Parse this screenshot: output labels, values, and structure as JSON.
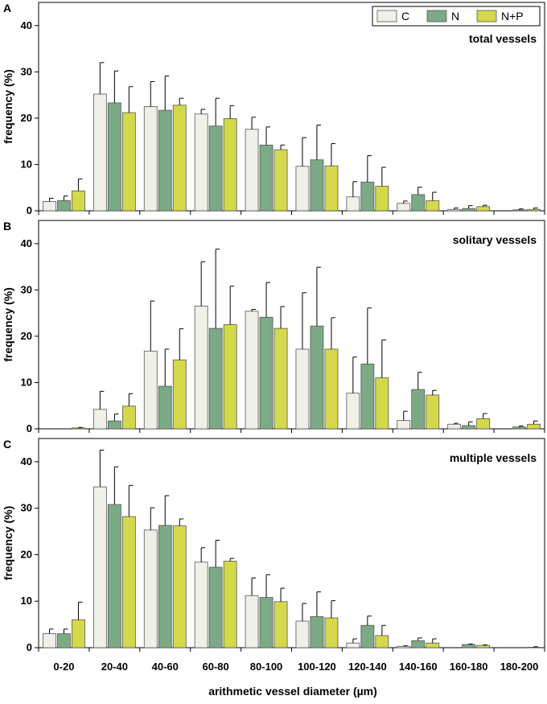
{
  "chart_data": [
    {
      "type": "bar",
      "panel_letter": "A",
      "title": "total vessels",
      "ylabel": "frequency (%)",
      "xlabel": "",
      "ylim": [
        0,
        45
      ],
      "yticks": [
        0,
        10,
        20,
        30,
        40
      ],
      "categories": [
        "0-20",
        "20-40",
        "40-60",
        "60-80",
        "80-100",
        "100-120",
        "120-140",
        "140-160",
        "160-180",
        "180-200"
      ],
      "series": [
        {
          "name": "C",
          "color": "#f0f0e8",
          "values": [
            2.0,
            25.2,
            22.5,
            20.9,
            17.6,
            9.6,
            3.0,
            1.6,
            0.3,
            0.0
          ],
          "errors": [
            0.7,
            6.8,
            5.4,
            1.0,
            2.6,
            6.2,
            3.3,
            0.5,
            0.3,
            0.0
          ]
        },
        {
          "name": "N",
          "color": "#7daa86",
          "values": [
            2.2,
            23.3,
            21.7,
            18.3,
            14.2,
            11.0,
            6.2,
            3.5,
            0.5,
            0.2
          ],
          "errors": [
            1.0,
            6.9,
            7.4,
            6.0,
            3.9,
            7.5,
            5.7,
            1.6,
            0.6,
            0.2
          ]
        },
        {
          "name": "N+P",
          "color": "#d3d94a",
          "values": [
            4.3,
            21.2,
            22.8,
            19.9,
            13.2,
            9.7,
            5.3,
            2.2,
            0.9,
            0.3
          ],
          "errors": [
            2.6,
            5.6,
            1.5,
            2.8,
            1.0,
            4.8,
            4.1,
            1.8,
            0.3,
            0.3
          ]
        }
      ]
    },
    {
      "type": "bar",
      "panel_letter": "B",
      "title": "solitary vessels",
      "ylabel": "frequency (%)",
      "xlabel": "",
      "ylim": [
        0,
        45
      ],
      "yticks": [
        0,
        10,
        20,
        30,
        40
      ],
      "categories": [
        "0-20",
        "20-40",
        "40-60",
        "60-80",
        "80-100",
        "100-120",
        "120-140",
        "140-160",
        "160-180",
        "180-200"
      ],
      "series": [
        {
          "name": "C",
          "color": "#f0f0e8",
          "values": [
            0.0,
            4.2,
            16.8,
            26.5,
            25.4,
            17.2,
            7.7,
            1.8,
            1.0,
            0.0
          ],
          "errors": [
            0.0,
            3.9,
            10.8,
            9.6,
            0.4,
            12.2,
            7.8,
            2.0,
            0.2,
            0.0
          ]
        },
        {
          "name": "N",
          "color": "#7daa86",
          "values": [
            0.0,
            1.7,
            9.2,
            21.7,
            24.1,
            22.2,
            14.0,
            8.5,
            0.7,
            0.4
          ],
          "errors": [
            0.0,
            1.5,
            8.0,
            17.1,
            7.5,
            12.7,
            12.1,
            3.7,
            0.8,
            0.2
          ]
        },
        {
          "name": "N+P",
          "color": "#d3d94a",
          "values": [
            0.2,
            4.9,
            14.9,
            22.5,
            21.7,
            17.2,
            11.0,
            7.3,
            2.2,
            1.0
          ],
          "errors": [
            0.1,
            2.7,
            6.7,
            8.3,
            4.7,
            6.8,
            8.2,
            1.0,
            1.1,
            0.7
          ]
        }
      ]
    },
    {
      "type": "bar",
      "panel_letter": "C",
      "title": "multiple vessels",
      "ylabel": "frequency (%)",
      "xlabel": "arithmetic vessel diameter (µm)",
      "ylim": [
        0,
        45
      ],
      "yticks": [
        0,
        10,
        20,
        30,
        40
      ],
      "categories": [
        "0-20",
        "20-40",
        "40-60",
        "60-80",
        "80-100",
        "100-120",
        "120-140",
        "140-160",
        "160-180",
        "180-200"
      ],
      "series": [
        {
          "name": "C",
          "color": "#f0f0e8",
          "values": [
            3.0,
            34.6,
            25.3,
            18.4,
            11.2,
            5.7,
            1.0,
            0.3,
            0.0,
            0.0
          ],
          "errors": [
            1.0,
            7.9,
            4.8,
            3.1,
            3.8,
            3.8,
            0.9,
            0.1,
            0.0,
            0.0
          ]
        },
        {
          "name": "N",
          "color": "#7daa86",
          "values": [
            3.0,
            30.8,
            26.3,
            17.3,
            10.8,
            6.7,
            4.8,
            1.5,
            0.7,
            0.0
          ],
          "errors": [
            1.0,
            8.1,
            6.4,
            5.8,
            4.9,
            5.3,
            2.0,
            0.6,
            0.1,
            0.0
          ]
        },
        {
          "name": "N+P",
          "color": "#d3d94a",
          "values": [
            6.0,
            28.2,
            26.2,
            18.6,
            9.9,
            6.4,
            2.6,
            1.0,
            0.5,
            0.1
          ],
          "errors": [
            3.8,
            6.7,
            1.5,
            0.6,
            2.9,
            3.7,
            2.2,
            0.9,
            0.1,
            0.1
          ]
        }
      ]
    }
  ],
  "legend": {
    "items": [
      {
        "label": "C",
        "color": "#f0f0e8"
      },
      {
        "label": "N",
        "color": "#7daa86"
      },
      {
        "label": "N+P",
        "color": "#d3d94a"
      }
    ]
  }
}
